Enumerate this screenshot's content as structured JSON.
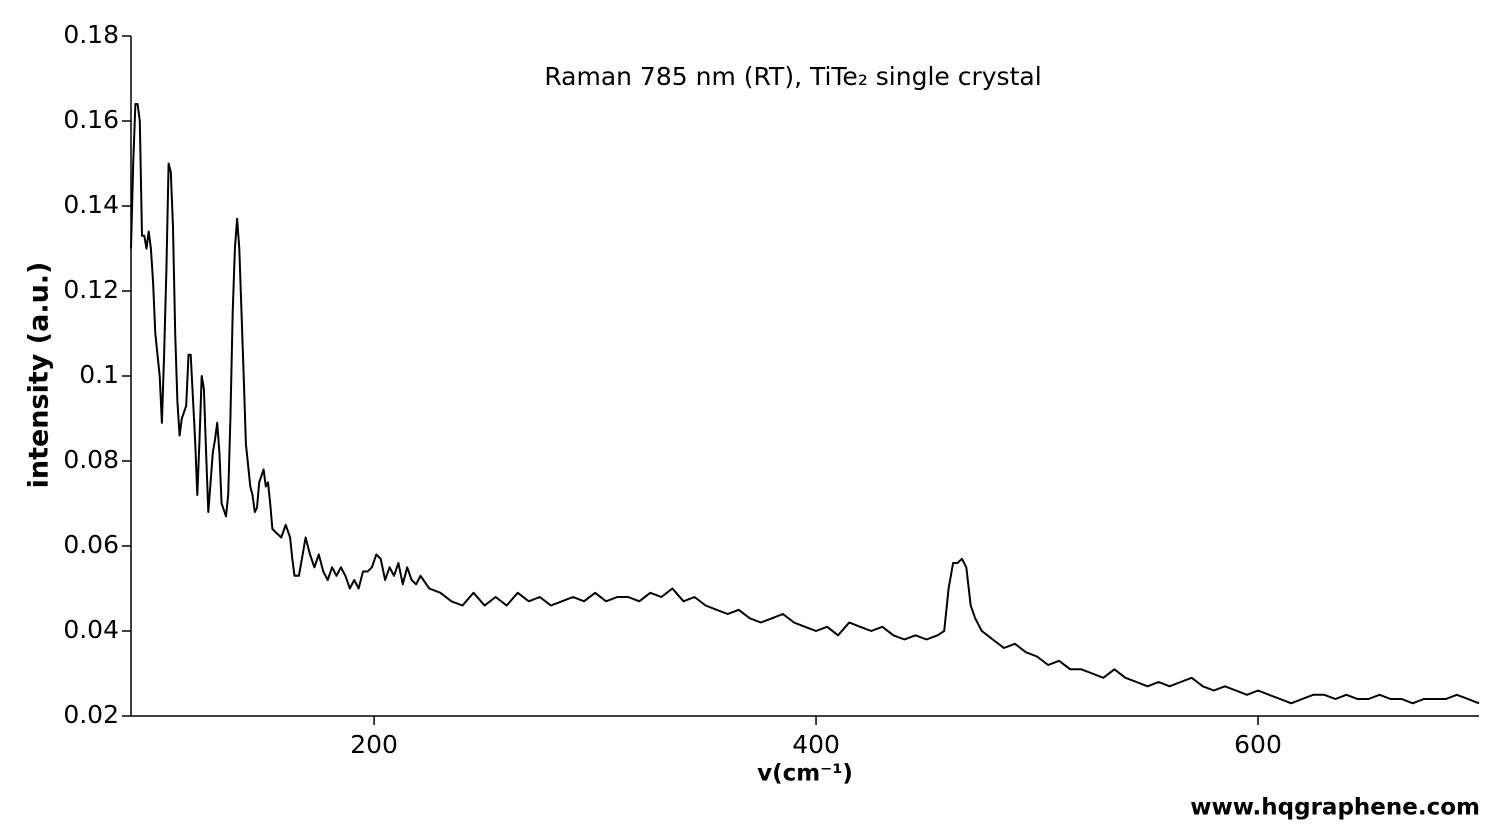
{
  "chart_data": {
    "type": "line",
    "title": "Raman 785 nm (RT), TiTe₂ single crystal",
    "xlabel": "v(cm⁻¹)",
    "ylabel": "intensity (a.u.)",
    "watermark": "www.hqgraphene.com",
    "color": "#000000",
    "xlim": [
      90,
      700
    ],
    "ylim": [
      0.02,
      0.18
    ],
    "xticks": [
      200,
      400,
      600
    ],
    "yticks": [
      0.02,
      0.04,
      0.06,
      0.08,
      0.1,
      0.12,
      0.14,
      0.16,
      0.18
    ],
    "x": [
      90,
      91,
      92,
      93,
      94,
      95,
      96,
      97,
      98,
      99,
      100,
      101,
      103,
      104,
      105,
      106,
      107,
      108,
      109,
      110,
      111,
      112,
      113,
      115,
      116,
      117,
      118,
      119,
      120,
      121,
      122,
      123,
      124,
      125,
      126,
      127,
      128,
      129,
      130,
      131,
      133,
      134,
      135,
      136,
      137,
      138,
      139,
      140,
      141,
      142,
      144,
      145,
      146,
      147,
      148,
      150,
      151,
      152,
      153,
      154,
      156,
      158,
      160,
      162,
      163,
      164,
      166,
      168,
      169,
      171,
      173,
      175,
      177,
      179,
      181,
      183,
      185,
      187,
      189,
      191,
      193,
      195,
      197,
      199,
      201,
      203,
      205,
      207,
      209,
      211,
      213,
      215,
      217,
      219,
      221,
      225,
      230,
      235,
      240,
      245,
      250,
      255,
      260,
      265,
      270,
      275,
      280,
      285,
      290,
      295,
      300,
      305,
      310,
      315,
      320,
      325,
      330,
      335,
      340,
      345,
      350,
      355,
      360,
      365,
      370,
      375,
      380,
      385,
      390,
      395,
      400,
      405,
      410,
      415,
      420,
      425,
      430,
      435,
      440,
      445,
      450,
      455,
      458,
      460,
      462,
      464,
      466,
      468,
      470,
      472,
      475,
      480,
      485,
      490,
      495,
      500,
      505,
      510,
      515,
      520,
      525,
      530,
      535,
      540,
      545,
      550,
      555,
      560,
      565,
      570,
      575,
      580,
      585,
      590,
      595,
      600,
      605,
      610,
      615,
      620,
      625,
      630,
      635,
      640,
      645,
      650,
      655,
      660,
      665,
      670,
      675,
      680,
      685,
      690,
      695,
      700
    ],
    "values": [
      0.13,
      0.15,
      0.164,
      0.164,
      0.16,
      0.133,
      0.133,
      0.13,
      0.134,
      0.13,
      0.122,
      0.11,
      0.1,
      0.089,
      0.105,
      0.125,
      0.15,
      0.148,
      0.135,
      0.11,
      0.094,
      0.086,
      0.09,
      0.093,
      0.105,
      0.105,
      0.095,
      0.085,
      0.072,
      0.085,
      0.1,
      0.097,
      0.082,
      0.068,
      0.075,
      0.082,
      0.085,
      0.089,
      0.082,
      0.07,
      0.067,
      0.072,
      0.09,
      0.115,
      0.13,
      0.137,
      0.13,
      0.115,
      0.1,
      0.084,
      0.074,
      0.072,
      0.068,
      0.069,
      0.075,
      0.078,
      0.074,
      0.075,
      0.07,
      0.064,
      0.063,
      0.062,
      0.065,
      0.062,
      0.057,
      0.053,
      0.053,
      0.059,
      0.062,
      0.058,
      0.055,
      0.058,
      0.054,
      0.052,
      0.055,
      0.053,
      0.055,
      0.053,
      0.05,
      0.052,
      0.05,
      0.054,
      0.054,
      0.055,
      0.058,
      0.057,
      0.052,
      0.055,
      0.053,
      0.056,
      0.051,
      0.055,
      0.052,
      0.051,
      0.053,
      0.05,
      0.049,
      0.047,
      0.046,
      0.049,
      0.046,
      0.048,
      0.046,
      0.049,
      0.047,
      0.048,
      0.046,
      0.047,
      0.048,
      0.047,
      0.049,
      0.047,
      0.048,
      0.048,
      0.047,
      0.049,
      0.048,
      0.05,
      0.047,
      0.048,
      0.046,
      0.045,
      0.044,
      0.045,
      0.043,
      0.042,
      0.043,
      0.044,
      0.042,
      0.041,
      0.04,
      0.041,
      0.039,
      0.042,
      0.041,
      0.04,
      0.041,
      0.039,
      0.038,
      0.039,
      0.038,
      0.039,
      0.04,
      0.05,
      0.056,
      0.056,
      0.057,
      0.055,
      0.046,
      0.043,
      0.04,
      0.038,
      0.036,
      0.037,
      0.035,
      0.034,
      0.032,
      0.033,
      0.031,
      0.031,
      0.03,
      0.029,
      0.031,
      0.029,
      0.028,
      0.027,
      0.028,
      0.027,
      0.028,
      0.029,
      0.027,
      0.026,
      0.027,
      0.026,
      0.025,
      0.026,
      0.025,
      0.024,
      0.023,
      0.024,
      0.025,
      0.025,
      0.024,
      0.025,
      0.024,
      0.024,
      0.025,
      0.024,
      0.024,
      0.023,
      0.024,
      0.024,
      0.024,
      0.025,
      0.024,
      0.023
    ]
  }
}
